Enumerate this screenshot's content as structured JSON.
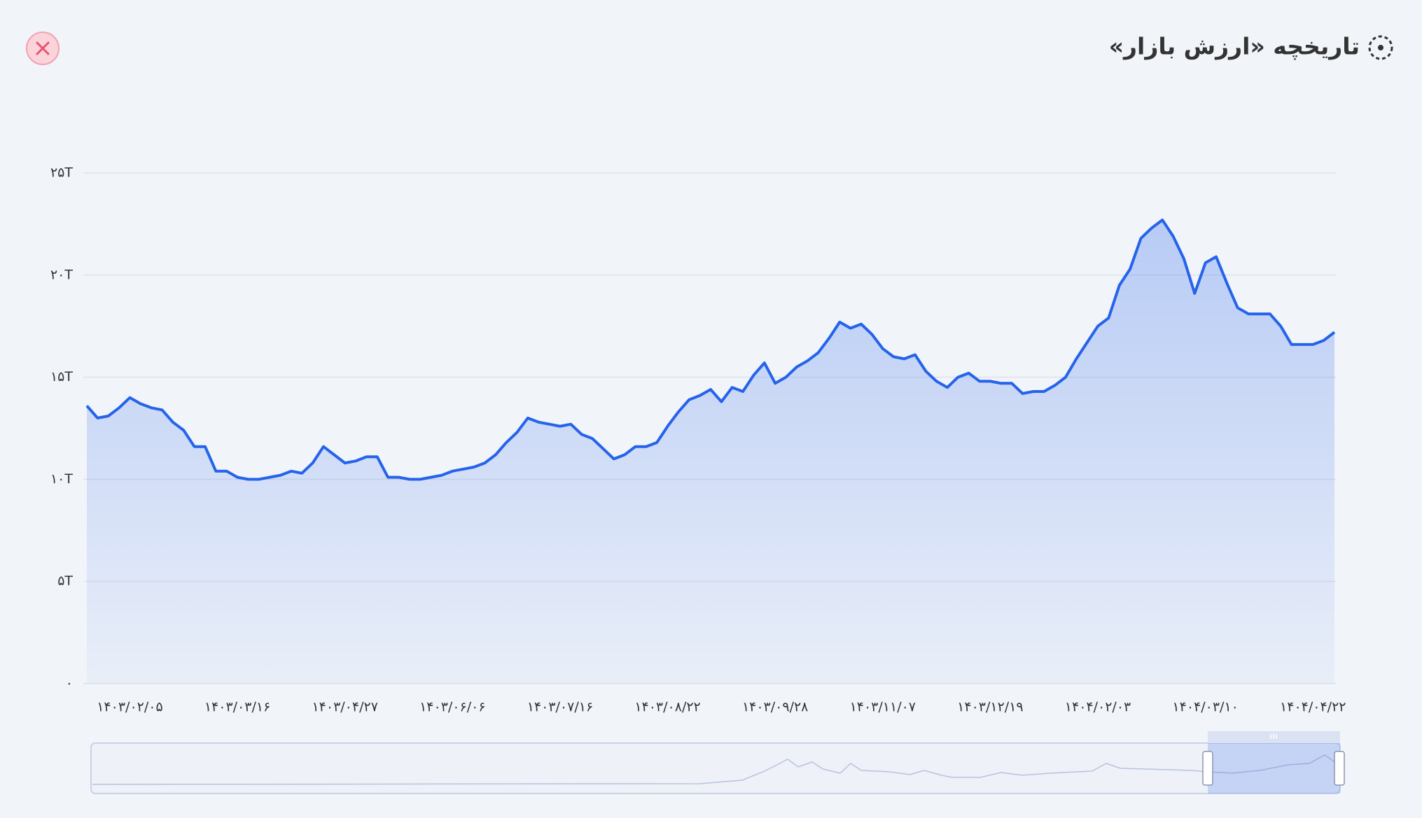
{
  "chart_data": {
    "type": "area",
    "title": "تاریخچه «ارزش بازار»",
    "categories": [
      null,
      null,
      null,
      null,
      "۱۴۰۳/۰۲/۰۵",
      null,
      null,
      null,
      null,
      null,
      null,
      null,
      null,
      null,
      "۱۴۰۳/۰۳/۱۶",
      null,
      null,
      null,
      null,
      null,
      null,
      null,
      null,
      null,
      "۱۴۰۳/۰۴/۲۷",
      null,
      null,
      null,
      null,
      null,
      null,
      null,
      null,
      null,
      "۱۴۰۳/۰۶/۰۶",
      null,
      null,
      null,
      null,
      null,
      null,
      null,
      null,
      null,
      "۱۴۰۳/۰۷/۱۶",
      null,
      null,
      null,
      null,
      null,
      null,
      null,
      null,
      null,
      "۱۴۰۳/۰۸/۲۲",
      null,
      null,
      null,
      null,
      null,
      null,
      null,
      null,
      null,
      "۱۴۰۳/۰۹/۲۸",
      null,
      null,
      null,
      null,
      null,
      null,
      null,
      null,
      null,
      "۱۴۰۳/۱۱/۰۷",
      null,
      null,
      null,
      null,
      null,
      null,
      null,
      null,
      null,
      "۱۴۰۳/۱۲/۱۹",
      null,
      null,
      null,
      null,
      null,
      null,
      null,
      null,
      null,
      "۱۴۰۴/۰۲/۰۳",
      null,
      null,
      null,
      null,
      null,
      null,
      null,
      null,
      null,
      "۱۴۰۴/۰۳/۱۰",
      null,
      null,
      null,
      null,
      null,
      null,
      null,
      null,
      null,
      "۱۴۰۴/۰۴/۲۲",
      null,
      null
    ],
    "series": [
      {
        "color": "#2563eb",
        "values": [
          13.6,
          13.0,
          13.1,
          13.5,
          14.0,
          13.7,
          13.5,
          13.4,
          12.8,
          12.4,
          11.6,
          11.6,
          10.4,
          10.4,
          10.1,
          10.0,
          10.0,
          10.1,
          10.2,
          10.4,
          10.3,
          10.8,
          11.6,
          11.2,
          10.8,
          10.9,
          11.1,
          11.1,
          10.1,
          10.1,
          10.0,
          10.0,
          10.1,
          10.2,
          10.4,
          10.5,
          10.6,
          10.8,
          11.2,
          11.8,
          12.3,
          13.0,
          12.8,
          12.7,
          12.6,
          12.7,
          12.2,
          12.0,
          11.5,
          11.0,
          11.2,
          11.6,
          11.6,
          11.8,
          12.6,
          13.3,
          13.9,
          14.1,
          14.4,
          13.8,
          14.5,
          14.3,
          15.1,
          15.7,
          14.7,
          15.0,
          15.5,
          15.8,
          16.2,
          16.9,
          17.7,
          17.4,
          17.6,
          17.1,
          16.4,
          16.0,
          15.9,
          16.1,
          15.3,
          14.8,
          14.5,
          15.0,
          15.2,
          14.8,
          14.8,
          14.7,
          14.7,
          14.2,
          14.3,
          14.3,
          14.6,
          15.0,
          15.9,
          16.7,
          17.5,
          17.9,
          19.5,
          20.3,
          21.8,
          22.3,
          22.7,
          21.9,
          20.8,
          19.1,
          20.6,
          20.9,
          19.6,
          18.4,
          18.1,
          18.1,
          18.1,
          17.5,
          16.6,
          16.6,
          16.6,
          16.8,
          17.2
        ]
      }
    ],
    "ylim": [
      0,
      25
    ],
    "yticks": [
      {
        "value": 0,
        "label": "۰"
      },
      {
        "value": 5,
        "label": "۵T"
      },
      {
        "value": 10,
        "label": "۱۰T"
      },
      {
        "value": 15,
        "label": "۱۵T"
      },
      {
        "value": 20,
        "label": "۲۰T"
      },
      {
        "value": 25,
        "label": "۲۵T"
      }
    ],
    "grid": true
  }
}
